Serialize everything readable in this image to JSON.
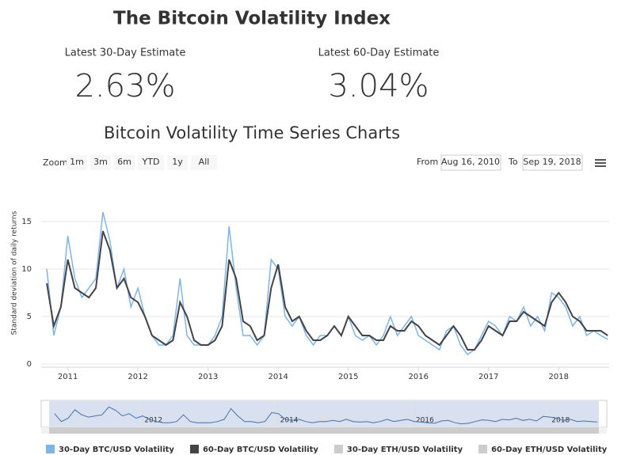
{
  "header": {
    "title": "The Bitcoin Volatility Index",
    "estimates": [
      {
        "label": "Latest 30-Day Estimate",
        "value": "2.63%"
      },
      {
        "label": "Latest 60-Day Estimate",
        "value": "3.04%"
      }
    ],
    "subtitle": "Bitcoin Volatility Time Series Charts"
  },
  "toolbar": {
    "zoom_label": "Zoom",
    "buttons": [
      "1m",
      "3m",
      "6m",
      "YTD",
      "1y",
      "All"
    ],
    "from_label": "From",
    "from": "Aug 16, 2010",
    "to_label": "To",
    "to": "Sep 19, 2018"
  },
  "chart_data": {
    "type": "line",
    "y_label": "Standard deviation of daily returns",
    "x": [
      2010.7,
      2010.8,
      2010.9,
      2011.0,
      2011.1,
      2011.2,
      2011.3,
      2011.4,
      2011.5,
      2011.6,
      2011.7,
      2011.8,
      2011.9,
      2012.0,
      2012.1,
      2012.2,
      2012.3,
      2012.4,
      2012.5,
      2012.6,
      2012.7,
      2012.8,
      2012.9,
      2013.0,
      2013.1,
      2013.2,
      2013.3,
      2013.4,
      2013.5,
      2013.6,
      2013.7,
      2013.8,
      2013.9,
      2014.0,
      2014.1,
      2014.2,
      2014.3,
      2014.4,
      2014.5,
      2014.6,
      2014.7,
      2014.8,
      2014.9,
      2015.0,
      2015.1,
      2015.2,
      2015.3,
      2015.4,
      2015.5,
      2015.6,
      2015.7,
      2015.8,
      2015.9,
      2016.0,
      2016.1,
      2016.2,
      2016.3,
      2016.4,
      2016.5,
      2016.6,
      2016.7,
      2016.8,
      2016.9,
      2017.0,
      2017.1,
      2017.2,
      2017.3,
      2017.4,
      2017.5,
      2017.6,
      2017.7,
      2017.8,
      2017.9,
      2018.0,
      2018.1,
      2018.2,
      2018.3,
      2018.4,
      2018.5,
      2018.6,
      2018.7
    ],
    "series": [
      {
        "name": "30-Day BTC/USD Volatility",
        "color": "#7cb5ec",
        "values": [
          10,
          3,
          6,
          13.5,
          9,
          7,
          8,
          9,
          16,
          13,
          8,
          10,
          6,
          8,
          5,
          3,
          2,
          2,
          3,
          9,
          3,
          2,
          2,
          2,
          3,
          5,
          14.5,
          8,
          3,
          3,
          2,
          3,
          11,
          10,
          5,
          4,
          5,
          3,
          2,
          3,
          3,
          4,
          3,
          5,
          3,
          2.5,
          3,
          2,
          3,
          5,
          3,
          4,
          5,
          3,
          2.5,
          2,
          1.5,
          3.5,
          4,
          2,
          1,
          1.5,
          3,
          4.5,
          4,
          3,
          5,
          4.5,
          6,
          4,
          5,
          3.5,
          7.5,
          7,
          6,
          4,
          5,
          3,
          3.5,
          3,
          2.6
        ]
      },
      {
        "name": "60-Day BTC/USD Volatility",
        "color": "#434348",
        "values": [
          8.5,
          4,
          6,
          11,
          8,
          7.5,
          7,
          8,
          14,
          12,
          8,
          9,
          7,
          6.5,
          5,
          3,
          2.5,
          2,
          2.5,
          6.5,
          5,
          2.5,
          2,
          2,
          2.5,
          4,
          11,
          9,
          4.5,
          4,
          2.5,
          3,
          8,
          10.5,
          6,
          4.5,
          5,
          3.5,
          2.5,
          2.5,
          3,
          4,
          3,
          5,
          4,
          3,
          3,
          2.5,
          2.5,
          4,
          3.5,
          3.5,
          4.5,
          4,
          3,
          2.5,
          2,
          3,
          4,
          3,
          1.5,
          1.5,
          2.5,
          4,
          3.5,
          3,
          4.5,
          4.5,
          5.5,
          5,
          4.5,
          4,
          6.5,
          7.5,
          6.5,
          5,
          4.5,
          3.5,
          3.5,
          3.5,
          3
        ]
      }
    ],
    "hidden_series": [
      "30-Day ETH/USD Volatility",
      "60-Day ETH/USD Volatility"
    ],
    "xlim": [
      2010.62,
      2018.72
    ],
    "xticks": [
      2011,
      2012,
      2013,
      2014,
      2015,
      2016,
      2017,
      2018
    ],
    "ylim": [
      0,
      19
    ],
    "yticks": [
      0,
      5,
      10,
      15
    ],
    "grid": true,
    "navigator_xticks": [
      2012,
      2014,
      2016,
      2018
    ]
  }
}
